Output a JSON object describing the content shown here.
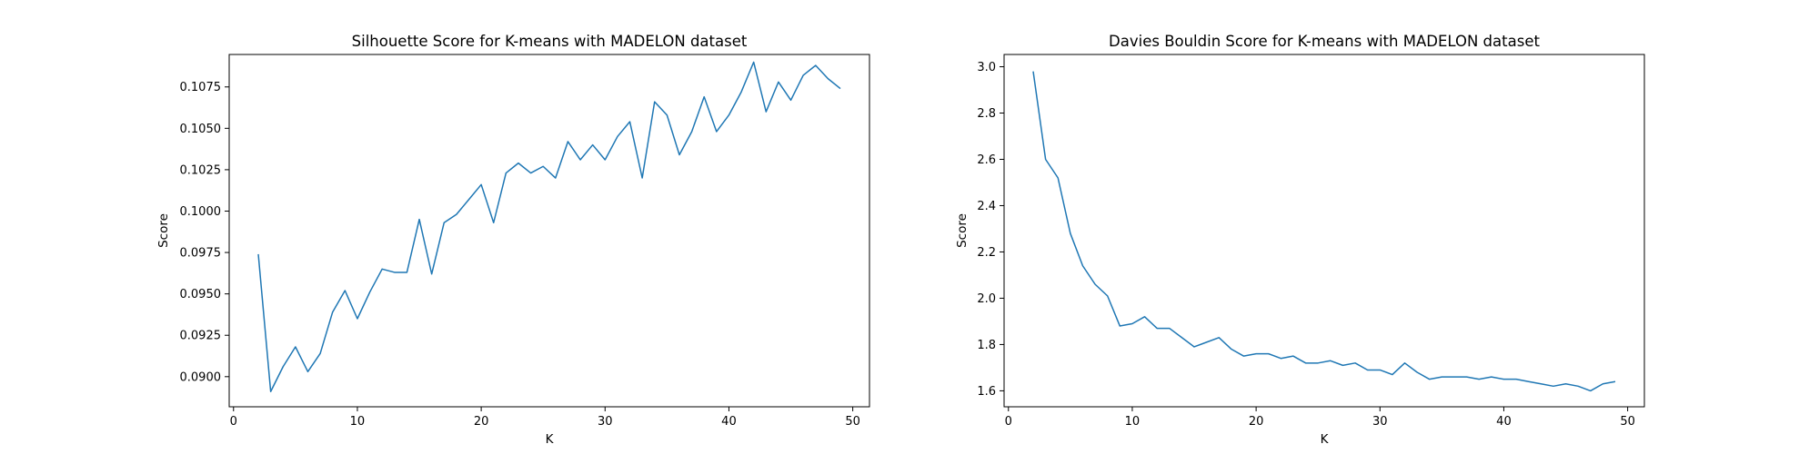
{
  "colors": {
    "line": "#1f77b4",
    "axes": "#000000",
    "background": "#ffffff"
  },
  "chart_data": [
    {
      "type": "line",
      "title": "Silhouette Score for K-means with MADELON dataset",
      "xlabel": "K",
      "ylabel": "Score",
      "xlim": [
        -0.35,
        51.35
      ],
      "ylim": [
        0.08818,
        0.10946
      ],
      "xticks": [
        0,
        10,
        20,
        30,
        40,
        50
      ],
      "xtick_labels": [
        "0",
        "10",
        "20",
        "30",
        "40",
        "50"
      ],
      "yticks": [
        0.09,
        0.0925,
        0.095,
        0.0975,
        0.1,
        0.1025,
        0.105,
        0.1075
      ],
      "ytick_labels": [
        "0.0900",
        "0.0925",
        "0.0950",
        "0.0975",
        "0.1000",
        "0.1025",
        "0.1050",
        "0.1075"
      ],
      "grid": false,
      "series": [
        {
          "x": [
            2,
            3,
            4,
            5,
            6,
            7,
            8,
            9,
            10,
            11,
            12,
            13,
            14,
            15,
            16,
            17,
            18,
            19,
            20,
            21,
            22,
            23,
            24,
            25,
            26,
            27,
            28,
            29,
            30,
            31,
            32,
            33,
            34,
            35,
            36,
            37,
            38,
            39,
            40,
            41,
            42,
            43,
            44,
            45,
            46,
            47,
            48,
            49
          ],
          "values": [
            0.0974,
            0.0891,
            0.0906,
            0.0918,
            0.0903,
            0.0914,
            0.0939,
            0.0952,
            0.0935,
            0.0951,
            0.0965,
            0.0963,
            0.0963,
            0.0995,
            0.0962,
            0.0993,
            0.0998,
            0.1007,
            0.1016,
            0.0993,
            0.1023,
            0.1029,
            0.1023,
            0.1027,
            0.102,
            0.1042,
            0.1031,
            0.104,
            0.1031,
            0.1045,
            0.1054,
            0.102,
            0.1066,
            0.1058,
            0.1034,
            0.1048,
            0.1069,
            0.1048,
            0.1058,
            0.1072,
            0.109,
            0.106,
            0.1078,
            0.1067,
            0.1082,
            0.1088,
            0.108,
            0.1074
          ]
        }
      ]
    },
    {
      "type": "line",
      "title": "Davies Bouldin Score for K-means with MADELON dataset",
      "xlabel": "K",
      "ylabel": "Score",
      "xlim": [
        -0.35,
        51.35
      ],
      "ylim": [
        1.531,
        3.053
      ],
      "xticks": [
        0,
        10,
        20,
        30,
        40,
        50
      ],
      "xtick_labels": [
        "0",
        "10",
        "20",
        "30",
        "40",
        "50"
      ],
      "yticks": [
        1.6,
        1.8,
        2.0,
        2.2,
        2.4,
        2.6,
        2.8,
        3.0
      ],
      "ytick_labels": [
        "1.6",
        "1.8",
        "2.0",
        "2.2",
        "2.4",
        "2.6",
        "2.8",
        "3.0"
      ],
      "grid": false,
      "series": [
        {
          "x": [
            2,
            3,
            4,
            5,
            6,
            7,
            8,
            9,
            10,
            11,
            12,
            13,
            14,
            15,
            16,
            17,
            18,
            19,
            20,
            21,
            22,
            23,
            24,
            25,
            26,
            27,
            28,
            29,
            30,
            31,
            32,
            33,
            34,
            35,
            36,
            37,
            38,
            39,
            40,
            41,
            42,
            43,
            44,
            45,
            46,
            47,
            48,
            49
          ],
          "values": [
            2.98,
            2.6,
            2.52,
            2.28,
            2.14,
            2.06,
            2.01,
            1.88,
            1.89,
            1.92,
            1.87,
            1.87,
            1.83,
            1.79,
            1.81,
            1.83,
            1.78,
            1.75,
            1.76,
            1.76,
            1.74,
            1.75,
            1.72,
            1.72,
            1.73,
            1.71,
            1.72,
            1.69,
            1.69,
            1.67,
            1.72,
            1.68,
            1.65,
            1.66,
            1.66,
            1.66,
            1.65,
            1.66,
            1.65,
            1.65,
            1.64,
            1.63,
            1.62,
            1.63,
            1.62,
            1.6,
            1.63,
            1.64
          ]
        }
      ]
    }
  ]
}
